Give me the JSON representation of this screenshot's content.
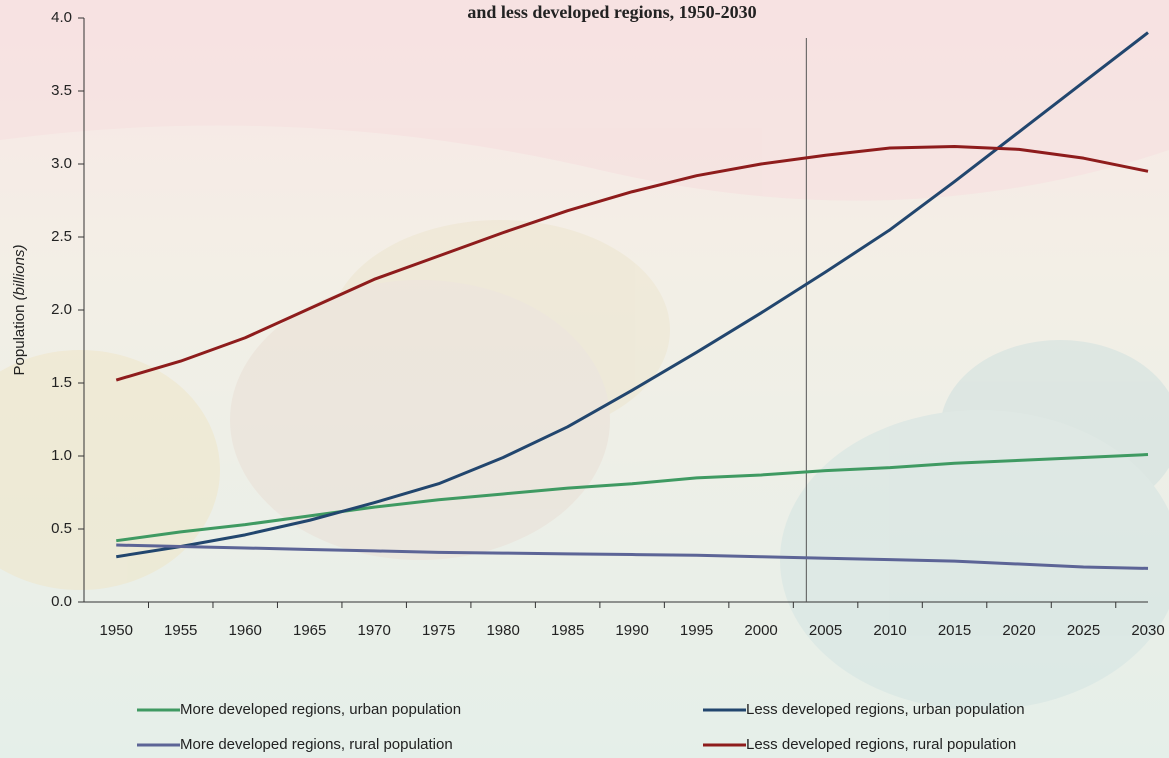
{
  "chart_data": {
    "type": "line",
    "title": "and less developed regions, 1950-2030",
    "ylabel": "Population",
    "ylabel_italic": "(billions)",
    "categories": [
      "1950",
      "1955",
      "1960",
      "1965",
      "1970",
      "1975",
      "1980",
      "1985",
      "1990",
      "1995",
      "2000",
      "2005",
      "2010",
      "2015",
      "2020",
      "2025",
      "2030"
    ],
    "series": [
      {
        "name": "More developed regions, urban population",
        "color": "#3f9a62",
        "values": [
          0.42,
          0.48,
          0.53,
          0.59,
          0.65,
          0.7,
          0.74,
          0.78,
          0.81,
          0.85,
          0.87,
          0.9,
          0.92,
          0.95,
          0.97,
          0.99,
          1.01
        ]
      },
      {
        "name": "Less developed regions, urban population",
        "color": "#22466e",
        "values": [
          0.31,
          0.38,
          0.46,
          0.56,
          0.68,
          0.81,
          0.99,
          1.2,
          1.45,
          1.71,
          1.98,
          2.26,
          2.55,
          2.88,
          3.22,
          3.56,
          3.9
        ]
      },
      {
        "name": "More developed regions, rural population",
        "color": "#5c6496",
        "values": [
          0.39,
          0.38,
          0.37,
          0.36,
          0.35,
          0.34,
          0.335,
          0.33,
          0.325,
          0.32,
          0.31,
          0.3,
          0.29,
          0.28,
          0.26,
          0.24,
          0.23
        ]
      },
      {
        "name": "Less developed regions, rural population",
        "color": "#8e1c1c",
        "values": [
          1.52,
          1.65,
          1.81,
          2.01,
          2.21,
          2.37,
          2.53,
          2.68,
          2.81,
          2.92,
          3.0,
          3.06,
          3.11,
          3.12,
          3.1,
          3.04,
          2.95
        ]
      }
    ],
    "vline": "2005",
    "ylim": [
      0,
      4
    ],
    "yticks": [
      {
        "value": 0,
        "label": "0.0"
      },
      0.5,
      {
        "value": 1,
        "label": "1.0"
      },
      1.5,
      {
        "value": 2,
        "label": "2.0"
      },
      2.5,
      {
        "value": 3,
        "label": "3.0"
      },
      3.5,
      {
        "value": 4,
        "label": "4.0"
      }
    ],
    "legend": "bottom"
  }
}
